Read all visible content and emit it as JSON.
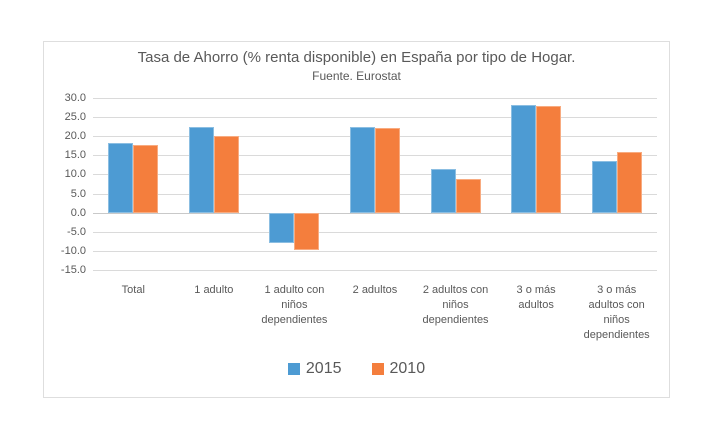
{
  "chart": {
    "title": "Tasa de Ahorro (% renta disponible) en España por tipo de Hogar.",
    "subtitle": "Fuente. Eurostat"
  },
  "chart_data": {
    "type": "bar",
    "title": "Tasa de Ahorro (% renta disponible) en España por tipo de Hogar.",
    "subtitle": "Fuente. Eurostat",
    "categories": [
      "Total",
      "1 adulto",
      "1 adulto con niños dependientes",
      "2 adultos",
      "2 adultos con niños dependientes",
      "3 o más adultos",
      "3 o más adultos con niños dependientes"
    ],
    "series": [
      {
        "name": "2015",
        "color": "#4D9BD3",
        "values": [
          18.2,
          22.5,
          -7.9,
          22.4,
          11.3,
          28.1,
          13.5
        ]
      },
      {
        "name": "2010",
        "color": "#F47E3D",
        "values": [
          17.7,
          20.0,
          -9.8,
          22.2,
          8.7,
          27.8,
          15.9
        ]
      }
    ],
    "xlabel": "",
    "ylabel": "",
    "ylim": [
      -15,
      30
    ],
    "ytick_step": 5,
    "grid": true,
    "legend_position": "bottom"
  },
  "colors": {
    "grid": "#dadada",
    "zero_line": "#c9c9c9",
    "axis_text": "#595959",
    "box_border": "#dedede"
  }
}
